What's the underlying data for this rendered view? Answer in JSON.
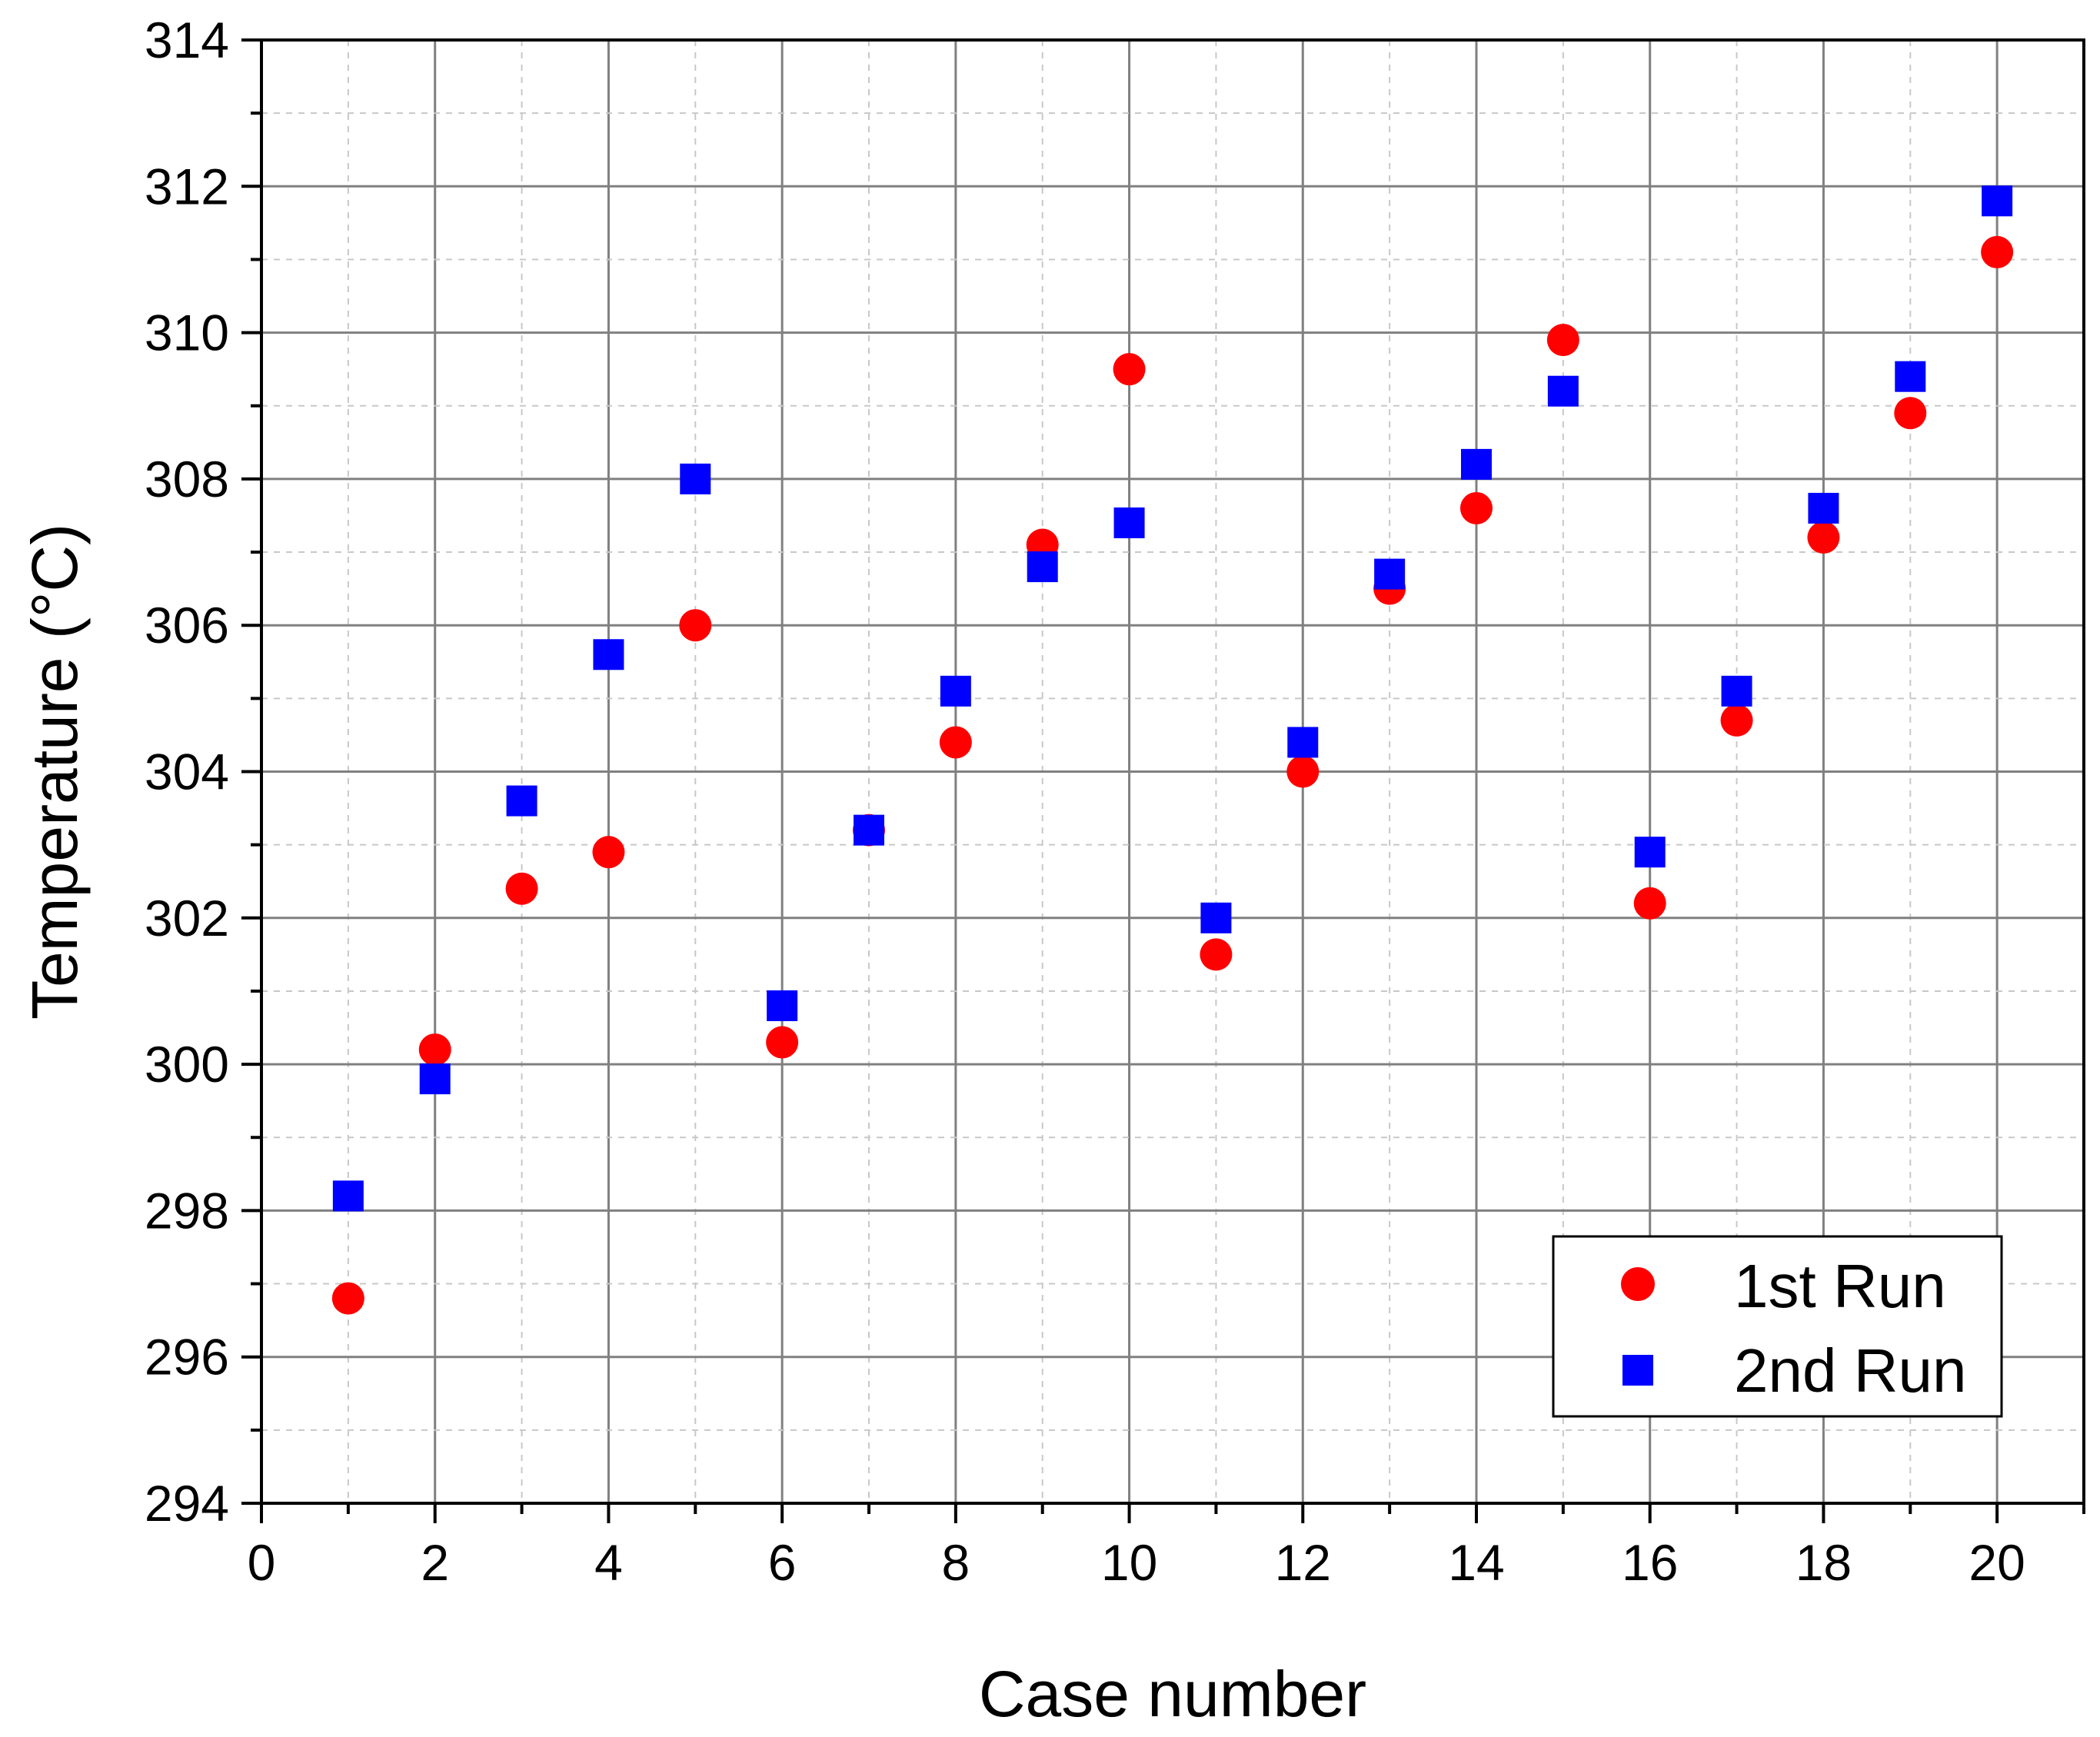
{
  "chart_data": {
    "type": "scatter",
    "title": "",
    "xlabel": "Case number",
    "ylabel": "Temperature (°C)",
    "xlim": [
      0,
      21
    ],
    "ylim": [
      294,
      314
    ],
    "x_ticks": [
      0,
      2,
      4,
      6,
      8,
      10,
      12,
      14,
      16,
      18,
      20
    ],
    "y_ticks": [
      294,
      296,
      298,
      300,
      302,
      304,
      306,
      308,
      310,
      312,
      314
    ],
    "grid": true,
    "legend_position": "bottom-right",
    "series": [
      {
        "name": "1st Run",
        "marker": "circle",
        "color": "#ff0000",
        "x": [
          1,
          2,
          3,
          4,
          5,
          6,
          7,
          8,
          9,
          10,
          11,
          12,
          13,
          14,
          15,
          16,
          17,
          18,
          19,
          20
        ],
        "y": [
          296.8,
          300.2,
          302.4,
          302.9,
          306.0,
          300.3,
          303.2,
          304.4,
          307.1,
          309.5,
          301.5,
          304.0,
          306.5,
          307.6,
          309.9,
          302.2,
          304.7,
          307.2,
          308.9,
          311.1
        ]
      },
      {
        "name": "2nd Run",
        "marker": "square",
        "color": "#0000ff",
        "x": [
          1,
          2,
          3,
          4,
          5,
          6,
          7,
          8,
          9,
          10,
          11,
          12,
          13,
          14,
          15,
          16,
          17,
          18,
          19,
          20
        ],
        "y": [
          298.2,
          299.8,
          303.6,
          305.6,
          308.0,
          300.8,
          303.2,
          305.1,
          306.8,
          307.4,
          302.0,
          304.4,
          306.7,
          308.2,
          309.2,
          302.9,
          305.1,
          307.6,
          309.4,
          311.8
        ]
      }
    ]
  }
}
